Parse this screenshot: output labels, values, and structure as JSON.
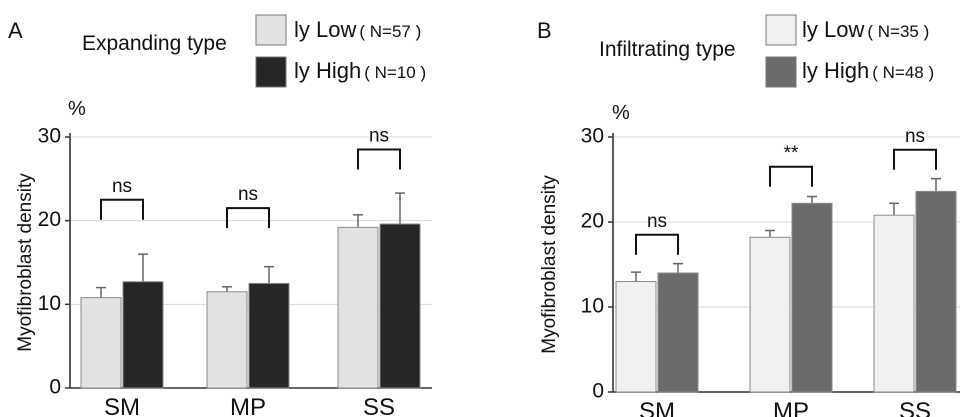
{
  "chart_data": [
    {
      "type": "bar",
      "panel_label": "A",
      "group_title": "Expanding type",
      "unit": "%",
      "ylabel": "Myofibroblast density",
      "ylim": [
        0,
        30
      ],
      "yticks": [
        "0",
        "10",
        "20",
        "30"
      ],
      "categories": [
        "SM",
        "MP",
        "SS"
      ],
      "grid": true,
      "legend_position": "top",
      "series": [
        {
          "name": "ly Low",
          "n_label": "( N=57 )",
          "color": "#e2e2e2",
          "values": [
            10.8,
            11.5,
            19.2
          ],
          "errors": [
            1.2,
            0.6,
            1.5
          ]
        },
        {
          "name": "ly High",
          "n_label": "( N=10 )",
          "color": "#262626",
          "values": [
            12.7,
            12.5,
            19.6
          ],
          "errors": [
            3.3,
            2.0,
            3.7
          ]
        }
      ],
      "significance": [
        "ns",
        "ns",
        "ns"
      ]
    },
    {
      "type": "bar",
      "panel_label": "B",
      "group_title": "Infiltrating type",
      "unit": "%",
      "ylabel": "Myofibroblast density",
      "ylim": [
        0,
        30
      ],
      "yticks": [
        "0",
        "10",
        "20",
        "30"
      ],
      "categories": [
        "SM",
        "MP",
        "SS"
      ],
      "grid": true,
      "legend_position": "top",
      "series": [
        {
          "name": "ly Low",
          "n_label": "( N=35 )",
          "color": "#f0f0f0",
          "values": [
            13.0,
            18.2,
            20.8
          ],
          "errors": [
            1.1,
            0.8,
            1.4
          ]
        },
        {
          "name": "ly High",
          "n_label": "( N=48 )",
          "color": "#6b6b6b",
          "values": [
            14.0,
            22.2,
            23.6
          ],
          "errors": [
            1.1,
            0.8,
            1.5
          ]
        }
      ],
      "significance": [
        "ns",
        "**",
        "ns"
      ]
    }
  ]
}
